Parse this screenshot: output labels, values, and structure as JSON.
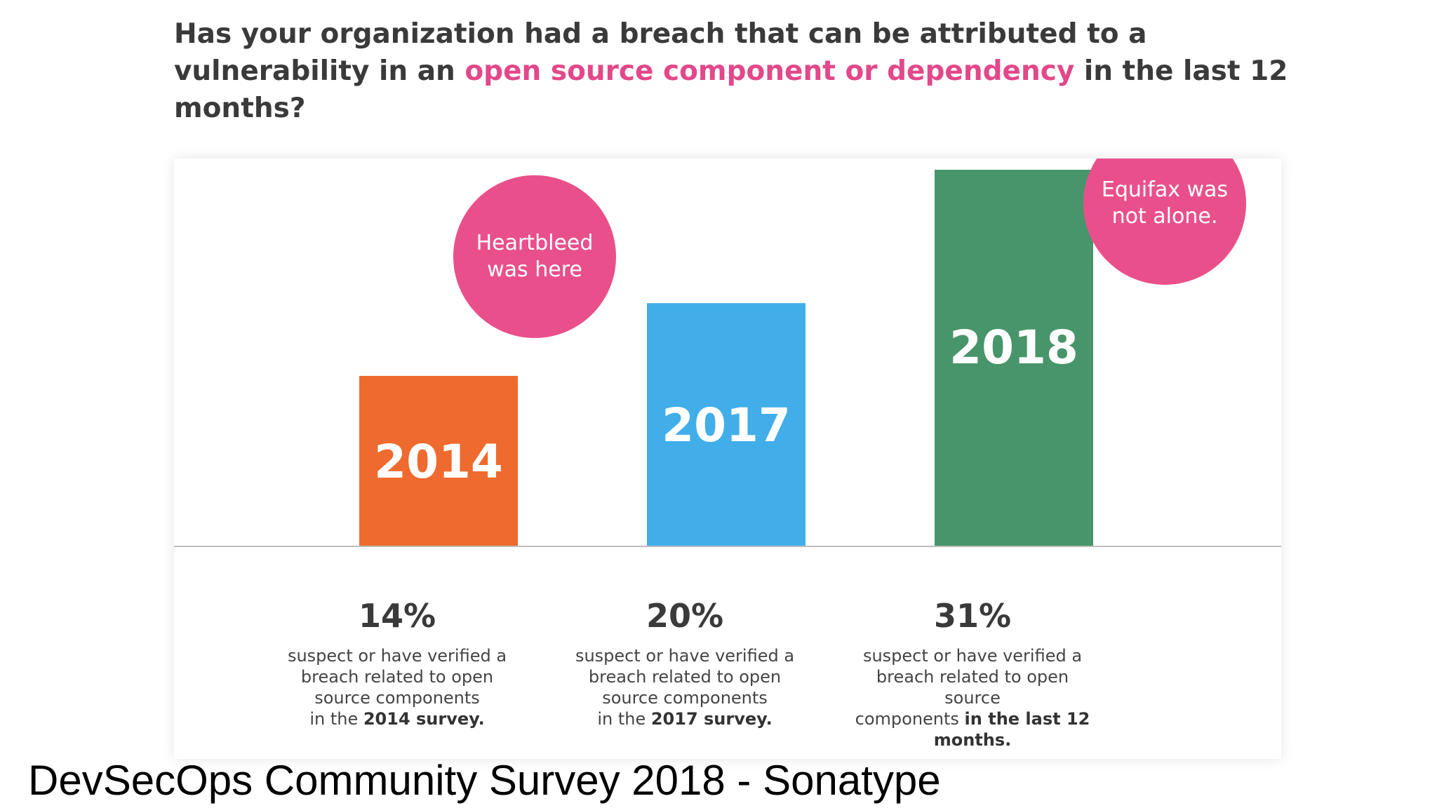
{
  "question": {
    "part1": "Has your organization had a breach that can be attributed to a vulnerability in an ",
    "highlight": "open source component or dependency",
    "part2": " in the last 12 months?",
    "highlight_color": "#e2488a"
  },
  "chart_data": {
    "type": "bar",
    "categories": [
      "2014",
      "2017",
      "2018"
    ],
    "values": [
      14,
      20,
      31
    ],
    "colors": [
      "#ee6a2e",
      "#41aee9",
      "#48956b"
    ],
    "annotations": [
      {
        "category": "2014",
        "text": [
          "Heartbleed",
          "was here"
        ]
      },
      {
        "category": "2018",
        "text": [
          "Equifax was",
          "not alone."
        ]
      }
    ],
    "annotation_color": "#e9508b"
  },
  "stats": [
    {
      "pct": "14%",
      "lines": [
        "suspect or have verified a",
        "breach related to open",
        "source components"
      ],
      "tail_plain": "in the ",
      "tail_bold": "2014 survey."
    },
    {
      "pct": "20%",
      "lines": [
        "suspect or have verified a",
        "breach related to open",
        "source components"
      ],
      "tail_plain": "in the ",
      "tail_bold": "2017 survey."
    },
    {
      "pct": "31%",
      "lines": [
        "suspect or have verified a",
        "breach related to open source"
      ],
      "tail_line_plain": "components ",
      "tail_line_bold": "in the last 12",
      "last_bold": "months."
    }
  ],
  "footer": "DevSecOps Community Survey 2018 - Sonatype"
}
